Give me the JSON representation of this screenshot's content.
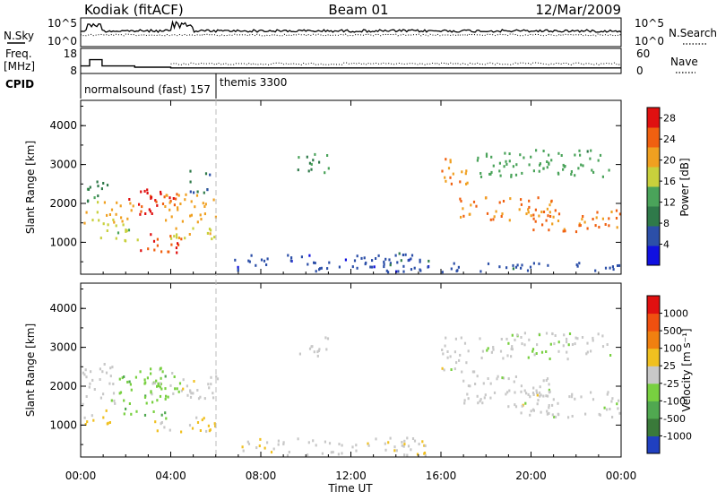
{
  "header": {
    "station": "Kodiak (fitACF)",
    "beam": "Beam 01",
    "date": "12/Mar/2009"
  },
  "side_labels": {
    "nsky": "N.Sky",
    "freq_line1": "Freq.",
    "freq_line2": "[MHz]",
    "cpid": "CPID",
    "nsearch": "N.Search",
    "nave": "Nave"
  },
  "chart_data": [
    {
      "type": "line",
      "panel": "noise",
      "series": [
        {
          "name": "N.Sky",
          "y_scale": "log",
          "ylim_exp": [
            0,
            5
          ]
        },
        {
          "name": "N.Search",
          "y_scale": "log",
          "ylim_exp": [
            0,
            5
          ]
        }
      ],
      "y_left_ticks": [
        "10^5",
        "10^0"
      ],
      "y_right_ticks": [
        "10^5",
        "10^0"
      ]
    },
    {
      "type": "line",
      "panel": "frequency",
      "series": [
        {
          "name": "Freq.",
          "x_hours": [
            0,
            0.4,
            0.4,
            0.95,
            0.95,
            2.4,
            2.4,
            4.0,
            4.0,
            24
          ],
          "values": [
            11,
            11,
            13.5,
            13.5,
            11,
            11,
            10.5,
            10.5,
            10.2,
            10.2
          ]
        },
        {
          "name": "Nave"
        }
      ],
      "y_left_ticks": [
        "18",
        "8"
      ],
      "y_right_ticks": [
        "60",
        "0"
      ]
    },
    {
      "type": "table",
      "panel": "cpid",
      "segments": [
        {
          "label": "normalsound (fast) 157",
          "start_hour": 0,
          "end_hour": 6.0
        },
        {
          "label": "themis 3300",
          "start_hour": 6.0,
          "end_hour": 24
        }
      ]
    },
    {
      "type": "heatmap",
      "panel": "power",
      "ylabel": "Slant Range [km]",
      "ylim": [
        180,
        4650
      ],
      "y_ticks": [
        "1000",
        "2000",
        "3000",
        "4000"
      ],
      "x_ticks": [
        "00:00",
        "04:00",
        "08:00",
        "12:00",
        "16:00",
        "20:00",
        "00:00"
      ],
      "xlim_hours": [
        0,
        24
      ],
      "colorbar": {
        "label": "Power [dB]",
        "ticks": [
          "4",
          "8",
          "12",
          "16",
          "20",
          "24",
          "28"
        ],
        "range": [
          0,
          30
        ],
        "colors": [
          "#1010e0",
          "#2c4fa8",
          "#2f7a4a",
          "#4aa35a",
          "#c8d03c",
          "#f0a020",
          "#f06010",
          "#e01010"
        ]
      },
      "regions": [
        {
          "t": [
            0.05,
            1.2
          ],
          "r": [
            2000,
            2600
          ],
          "level": 10
        },
        {
          "t": [
            0.1,
            2.3
          ],
          "r": [
            1500,
            2100
          ],
          "level": 20
        },
        {
          "t": [
            0.8,
            2.6
          ],
          "r": [
            1050,
            1500
          ],
          "level": 16
        },
        {
          "t": [
            2.1,
            4.3
          ],
          "r": [
            1750,
            2450
          ],
          "level": 27
        },
        {
          "t": [
            2.5,
            4.5
          ],
          "r": [
            750,
            1250
          ],
          "level": 26
        },
        {
          "t": [
            3.0,
            6.0
          ],
          "r": [
            1100,
            1400
          ],
          "level": 18
        },
        {
          "t": [
            3.6,
            6.1
          ],
          "r": [
            1550,
            2300
          ],
          "level": 21
        },
        {
          "t": [
            4.8,
            5.8
          ],
          "r": [
            2300,
            2900
          ],
          "level": 9
        },
        {
          "t": [
            9.6,
            11.0
          ],
          "r": [
            2800,
            3350
          ],
          "level": 11
        },
        {
          "t": [
            6.8,
            15.5
          ],
          "r": [
            250,
            700
          ],
          "level": 5
        },
        {
          "t": [
            13.5,
            15.5
          ],
          "r": [
            450,
            750
          ],
          "level": 7
        },
        {
          "t": [
            16.0,
            17.2
          ],
          "r": [
            2500,
            3300
          ],
          "level": 22
        },
        {
          "t": [
            16.8,
            21.0
          ],
          "r": [
            1600,
            2200
          ],
          "level": 22
        },
        {
          "t": [
            20.0,
            24.0
          ],
          "r": [
            1300,
            1900
          ],
          "level": 23
        },
        {
          "t": [
            17.5,
            23.5
          ],
          "r": [
            2700,
            3400
          ],
          "level": 13
        },
        {
          "t": [
            16.0,
            24.0
          ],
          "r": [
            200,
            500
          ],
          "level": 6
        }
      ]
    },
    {
      "type": "heatmap",
      "panel": "velocity",
      "ylabel": "Slant Range [km]",
      "xlabel": "Time UT",
      "ylim": [
        180,
        4650
      ],
      "y_ticks": [
        "1000",
        "2000",
        "3000",
        "4000"
      ],
      "x_ticks": [
        "00:00",
        "04:00",
        "08:00",
        "12:00",
        "16:00",
        "20:00",
        "00:00"
      ],
      "xlim_hours": [
        0,
        24
      ],
      "colorbar": {
        "label": "Velocity [m s⁻¹]",
        "ticks": [
          "1000",
          "500",
          "100",
          "25",
          "-25",
          "-100",
          "-500",
          "-1000"
        ],
        "range": [
          -1000,
          1000
        ],
        "colors": [
          "#2040c0",
          "#3a7a3a",
          "#50a850",
          "#78d040",
          "#c8c8c8",
          "#f0c020",
          "#f08010",
          "#f05010",
          "#e01010"
        ]
      },
      "regions": [
        {
          "t": [
            0.05,
            1.5
          ],
          "r": [
            1500,
            2600
          ],
          "level": 0
        },
        {
          "t": [
            0.1,
            1.4
          ],
          "r": [
            1050,
            1500
          ],
          "level": 150
        },
        {
          "t": [
            1.6,
            3.8
          ],
          "r": [
            1200,
            2300
          ],
          "level": -250
        },
        {
          "t": [
            2.6,
            4.4
          ],
          "r": [
            1700,
            2500
          ],
          "level": -200
        },
        {
          "t": [
            3.0,
            6.0
          ],
          "r": [
            850,
            1250
          ],
          "level": 150
        },
        {
          "t": [
            3.6,
            6.1
          ],
          "r": [
            1700,
            2300
          ],
          "level": 0
        },
        {
          "t": [
            9.6,
            11.0
          ],
          "r": [
            2800,
            3300
          ],
          "level": 0
        },
        {
          "t": [
            7.0,
            15.5
          ],
          "r": [
            250,
            700
          ],
          "level": 50
        },
        {
          "t": [
            16.0,
            17.5
          ],
          "r": [
            2400,
            3300
          ],
          "level": 0
        },
        {
          "t": [
            16.8,
            21.0
          ],
          "r": [
            1500,
            2300
          ],
          "level": 0
        },
        {
          "t": [
            19.5,
            24.0
          ],
          "r": [
            1200,
            1900
          ],
          "level": 0
        },
        {
          "t": [
            17.5,
            23.5
          ],
          "r": [
            2700,
            3400
          ],
          "level": -30
        }
      ]
    }
  ]
}
